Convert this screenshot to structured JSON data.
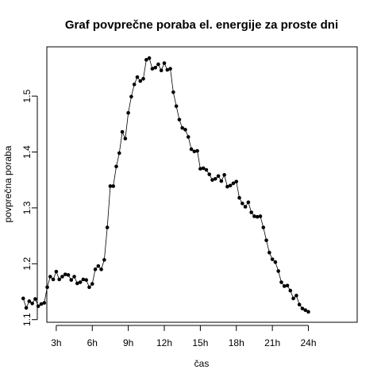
{
  "chart_data": {
    "type": "line",
    "title": "Graf povprečne poraba el. energije za proste dni",
    "xlabel": "čas",
    "ylabel": "povprečna poraba",
    "xlim": [
      0,
      24.5
    ],
    "ylim": [
      1.1,
      1.585
    ],
    "x_ticks": [
      {
        "value": 3,
        "label": "3h"
      },
      {
        "value": 6,
        "label": "6h"
      },
      {
        "value": 9,
        "label": "9h"
      },
      {
        "value": 12,
        "label": "12h"
      },
      {
        "value": 15,
        "label": "15h"
      },
      {
        "value": 18,
        "label": "18h"
      },
      {
        "value": 21,
        "label": "21h"
      },
      {
        "value": 24,
        "label": "24h"
      }
    ],
    "y_ticks": [
      {
        "value": 1.1,
        "label": "1.1"
      },
      {
        "value": 1.2,
        "label": "1.2"
      },
      {
        "value": 1.3,
        "label": "1.3"
      },
      {
        "value": 1.4,
        "label": "1.4"
      },
      {
        "value": 1.5,
        "label": "1.5"
      }
    ],
    "grid": false,
    "series": [
      {
        "x": [
          0.25,
          0.5,
          0.75,
          1,
          1.25,
          1.5,
          1.75,
          2,
          2.25,
          2.5,
          2.75,
          3,
          3.25,
          3.5,
          3.75,
          4,
          4.25,
          4.5,
          4.75,
          5,
          5.25,
          5.5,
          5.75,
          6,
          6.25,
          6.5,
          6.75,
          7,
          7.25,
          7.5,
          7.75,
          8,
          8.25,
          8.5,
          8.75,
          9,
          9.25,
          9.5,
          9.75,
          10,
          10.25,
          10.5,
          10.75,
          11,
          11.25,
          11.5,
          11.75,
          12,
          12.25,
          12.5,
          12.75,
          13,
          13.25,
          13.5,
          13.75,
          14,
          14.25,
          14.5,
          14.75,
          15,
          15.25,
          15.5,
          15.75,
          16,
          16.25,
          16.5,
          16.75,
          17,
          17.25,
          17.5,
          17.75,
          18,
          18.25,
          18.5,
          18.75,
          19,
          19.25,
          19.5,
          19.75,
          20,
          20.25,
          20.5,
          20.75,
          21,
          21.25,
          21.5,
          21.75,
          22,
          22.25,
          22.5,
          22.75,
          23,
          23.25,
          23.5,
          23.75,
          24
        ],
        "values": [
          1.138,
          1.121,
          1.133,
          1.129,
          1.137,
          1.124,
          1.128,
          1.13,
          1.158,
          1.177,
          1.172,
          1.186,
          1.172,
          1.177,
          1.181,
          1.18,
          1.171,
          1.177,
          1.165,
          1.167,
          1.172,
          1.171,
          1.158,
          1.164,
          1.19,
          1.196,
          1.19,
          1.207,
          1.265,
          1.339,
          1.339,
          1.374,
          1.398,
          1.436,
          1.424,
          1.47,
          1.499,
          1.521,
          1.534,
          1.527,
          1.531,
          1.565,
          1.568,
          1.549,
          1.551,
          1.557,
          1.546,
          1.559,
          1.547,
          1.549,
          1.507,
          1.482,
          1.458,
          1.443,
          1.44,
          1.427,
          1.405,
          1.401,
          1.402,
          1.37,
          1.371,
          1.368,
          1.36,
          1.35,
          1.352,
          1.357,
          1.348,
          1.359,
          1.338,
          1.34,
          1.344,
          1.347,
          1.318,
          1.308,
          1.302,
          1.31,
          1.292,
          1.285,
          1.284,
          1.285,
          1.265,
          1.242,
          1.22,
          1.208,
          1.203,
          1.187,
          1.167,
          1.16,
          1.161,
          1.152,
          1.138,
          1.143,
          1.127,
          1.12,
          1.117,
          1.114
        ]
      }
    ]
  }
}
